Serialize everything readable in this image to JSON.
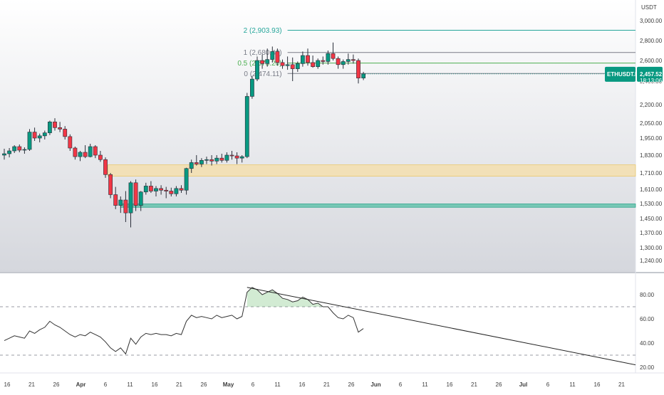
{
  "price_axis": {
    "currency": "USDT",
    "ticks": [
      "3,000.00",
      "2,800.00",
      "2,600.00",
      "2,400.00",
      "2,200.00",
      "2,050.00",
      "1,950.00",
      "1,830.00",
      "1,710.00",
      "1,610.00",
      "1,530.00",
      "1,450.00",
      "1,370.00",
      "1,300.00",
      "1,240.00"
    ],
    "tick_values": [
      3000,
      2800,
      2600,
      2400,
      2200,
      2050,
      1950,
      1830,
      1710,
      1610,
      1530,
      1450,
      1370,
      1300,
      1240
    ]
  },
  "time_axis": {
    "ticks": [
      "16",
      "21",
      "26",
      "Apr",
      "6",
      "11",
      "16",
      "21",
      "26",
      "May",
      "6",
      "11",
      "16",
      "21",
      "26",
      "Jun",
      "6",
      "11",
      "16",
      "21",
      "26",
      "Jul",
      "6",
      "11",
      "16",
      "21"
    ],
    "bold": [
      "Apr",
      "May",
      "Jun",
      "Jul"
    ]
  },
  "fib_levels": [
    {
      "label": "2 (2,903.93)",
      "value": 2903.93,
      "color": "#26a69a"
    },
    {
      "label": "1 (2,680.42)",
      "value": 2680.42,
      "color": "#787b86"
    },
    {
      "label": "0.5 (2,575.20)",
      "value": 2575.2,
      "color": "#4caf50"
    },
    {
      "label": "0 (2,474.11)",
      "value": 2474.11,
      "color": "#787b86"
    }
  ],
  "current_price": {
    "symbol": "ETHUSDT.P",
    "price": "2,457.52",
    "countdown": "18:13:06",
    "color": "#089981"
  },
  "zones": [
    {
      "name": "supply-zone",
      "top": 1765,
      "bottom": 1690,
      "color": "#f5deaa"
    },
    {
      "name": "demand-zone",
      "top": 1528,
      "bottom": 1510,
      "color": "#5cc1a9"
    }
  ],
  "rsi_axis": {
    "ticks": [
      "80.00",
      "60.00",
      "40.00",
      "20.00"
    ],
    "tick_values": [
      80,
      60,
      40,
      20
    ],
    "bands": [
      70,
      30
    ]
  },
  "colors": {
    "up": "#089981",
    "down": "#f23645",
    "line": "#333333"
  },
  "chart_data": {
    "type": "candlestick",
    "series_ohlc": [
      [
        1830,
        1875,
        1800,
        1840
      ],
      [
        1840,
        1880,
        1815,
        1860
      ],
      [
        1860,
        1900,
        1845,
        1890
      ],
      [
        1890,
        1905,
        1850,
        1865
      ],
      [
        1865,
        1885,
        1840,
        1870
      ],
      [
        1870,
        2010,
        1860,
        1990
      ],
      [
        1990,
        2020,
        1930,
        1950
      ],
      [
        1950,
        1980,
        1920,
        1965
      ],
      [
        1965,
        2000,
        1940,
        1985
      ],
      [
        1985,
        2070,
        1970,
        2060
      ],
      [
        2060,
        2090,
        2000,
        2020
      ],
      [
        2020,
        2060,
        1990,
        2010
      ],
      [
        2010,
        2030,
        1940,
        1960
      ],
      [
        1960,
        1975,
        1860,
        1880
      ],
      [
        1880,
        1890,
        1800,
        1820
      ],
      [
        1820,
        1860,
        1790,
        1850
      ],
      [
        1850,
        1900,
        1810,
        1820
      ],
      [
        1820,
        1910,
        1815,
        1890
      ],
      [
        1890,
        1900,
        1810,
        1830
      ],
      [
        1830,
        1860,
        1785,
        1800
      ],
      [
        1800,
        1815,
        1680,
        1700
      ],
      [
        1700,
        1710,
        1560,
        1580
      ],
      [
        1580,
        1625,
        1500,
        1520
      ],
      [
        1520,
        1570,
        1480,
        1550
      ],
      [
        1550,
        1600,
        1430,
        1480
      ],
      [
        1480,
        1660,
        1400,
        1650
      ],
      [
        1650,
        1670,
        1490,
        1520
      ],
      [
        1520,
        1600,
        1490,
        1595
      ],
      [
        1595,
        1650,
        1580,
        1630
      ],
      [
        1630,
        1660,
        1590,
        1600
      ],
      [
        1600,
        1630,
        1570,
        1615
      ],
      [
        1615,
        1635,
        1580,
        1605
      ],
      [
        1605,
        1625,
        1560,
        1600
      ],
      [
        1600,
        1620,
        1570,
        1585
      ],
      [
        1585,
        1630,
        1570,
        1615
      ],
      [
        1615,
        1635,
        1590,
        1605
      ],
      [
        1605,
        1745,
        1580,
        1740
      ],
      [
        1740,
        1800,
        1710,
        1780
      ],
      [
        1780,
        1830,
        1760,
        1770
      ],
      [
        1770,
        1810,
        1750,
        1795
      ],
      [
        1795,
        1820,
        1770,
        1800
      ],
      [
        1800,
        1830,
        1760,
        1790
      ],
      [
        1790,
        1830,
        1770,
        1810
      ],
      [
        1810,
        1840,
        1780,
        1795
      ],
      [
        1795,
        1850,
        1780,
        1830
      ],
      [
        1830,
        1860,
        1800,
        1825
      ],
      [
        1825,
        1850,
        1770,
        1810
      ],
      [
        1810,
        1830,
        1780,
        1820
      ],
      [
        1820,
        2300,
        1810,
        2270
      ],
      [
        2270,
        2450,
        2250,
        2420
      ],
      [
        2420,
        2640,
        2400,
        2600
      ],
      [
        2600,
        2660,
        2520,
        2570
      ],
      [
        2570,
        2720,
        2540,
        2610
      ],
      [
        2610,
        2740,
        2580,
        2690
      ],
      [
        2690,
        2720,
        2550,
        2580
      ],
      [
        2580,
        2610,
        2520,
        2550
      ],
      [
        2550,
        2640,
        2510,
        2560
      ],
      [
        2560,
        2630,
        2400,
        2520
      ],
      [
        2520,
        2590,
        2490,
        2570
      ],
      [
        2570,
        2690,
        2540,
        2650
      ],
      [
        2650,
        2720,
        2550,
        2580
      ],
      [
        2580,
        2650,
        2530,
        2540
      ],
      [
        2540,
        2620,
        2520,
        2600
      ],
      [
        2600,
        2640,
        2560,
        2590
      ],
      [
        2590,
        2700,
        2560,
        2670
      ],
      [
        2670,
        2780,
        2600,
        2620
      ],
      [
        2620,
        2640,
        2520,
        2560
      ],
      [
        2560,
        2610,
        2520,
        2590
      ],
      [
        2590,
        2670,
        2560,
        2610
      ],
      [
        2610,
        2660,
        2570,
        2600
      ],
      [
        2600,
        2620,
        2380,
        2430
      ],
      [
        2430,
        2490,
        2410,
        2470
      ]
    ],
    "rsi": [
      42,
      44,
      46,
      45,
      44,
      50,
      48,
      51,
      53,
      58,
      55,
      53,
      50,
      47,
      45,
      47,
      46,
      49,
      47,
      45,
      41,
      36,
      33,
      36,
      31,
      44,
      39,
      45,
      48,
      47,
      48,
      47,
      47,
      46,
      48,
      47,
      58,
      63,
      61,
      62,
      61,
      60,
      63,
      61,
      62,
      63,
      60,
      62,
      82,
      86,
      84,
      80,
      82,
      84,
      81,
      77,
      76,
      74,
      75,
      78,
      76,
      72,
      73,
      70,
      70,
      65,
      61,
      60,
      63,
      61,
      49,
      52
    ],
    "trendline": [
      [
        48,
        86
      ],
      [
        95,
        22
      ]
    ],
    "xlabel": "",
    "ylabel": "USDT"
  }
}
